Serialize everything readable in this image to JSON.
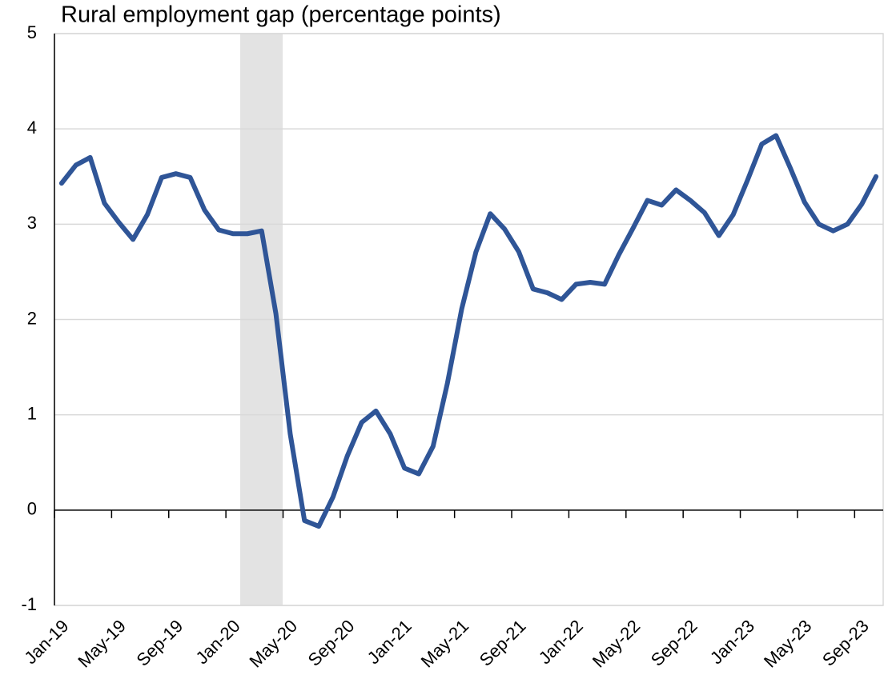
{
  "chart_data": {
    "type": "line",
    "title": "Rural employment gap (percentage points)",
    "categories": [
      "Jan-19",
      null,
      null,
      null,
      "May-19",
      null,
      null,
      null,
      "Sep-19",
      null,
      null,
      null,
      "Jan-20",
      null,
      null,
      null,
      "May-20",
      null,
      null,
      null,
      "Sep-20",
      null,
      null,
      null,
      "Jan-21",
      null,
      null,
      null,
      "May-21",
      null,
      null,
      null,
      "Sep-21",
      null,
      null,
      null,
      "Jan-22",
      null,
      null,
      null,
      "May-22",
      null,
      null,
      null,
      "Sep-22",
      null,
      null,
      null,
      "Jan-23",
      null,
      null,
      null,
      "May-23",
      null,
      null,
      null,
      "Sep-23",
      null
    ],
    "series": [
      {
        "color": "#2f5597",
        "values": [
          3.43,
          3.62,
          3.7,
          3.22,
          3.02,
          2.84,
          3.1,
          3.49,
          3.53,
          3.49,
          3.15,
          2.94,
          2.9,
          2.9,
          2.93,
          2.06,
          0.8,
          -0.11,
          -0.17,
          0.14,
          0.57,
          0.92,
          1.04,
          0.8,
          0.44,
          0.38,
          0.67,
          1.33,
          2.11,
          2.71,
          3.11,
          2.95,
          2.71,
          2.32,
          2.28,
          2.21,
          2.37,
          2.39,
          2.37,
          2.68,
          2.96,
          3.25,
          3.2,
          3.36,
          3.25,
          3.12,
          2.88,
          3.1,
          3.46,
          3.84,
          3.93,
          3.59,
          3.23,
          3.0,
          2.93,
          3.0,
          3.21,
          3.5
        ]
      }
    ],
    "ylim": [
      -1,
      5
    ],
    "yticks": [
      -1,
      0,
      1,
      2,
      3,
      4,
      5
    ],
    "grid": true
  }
}
